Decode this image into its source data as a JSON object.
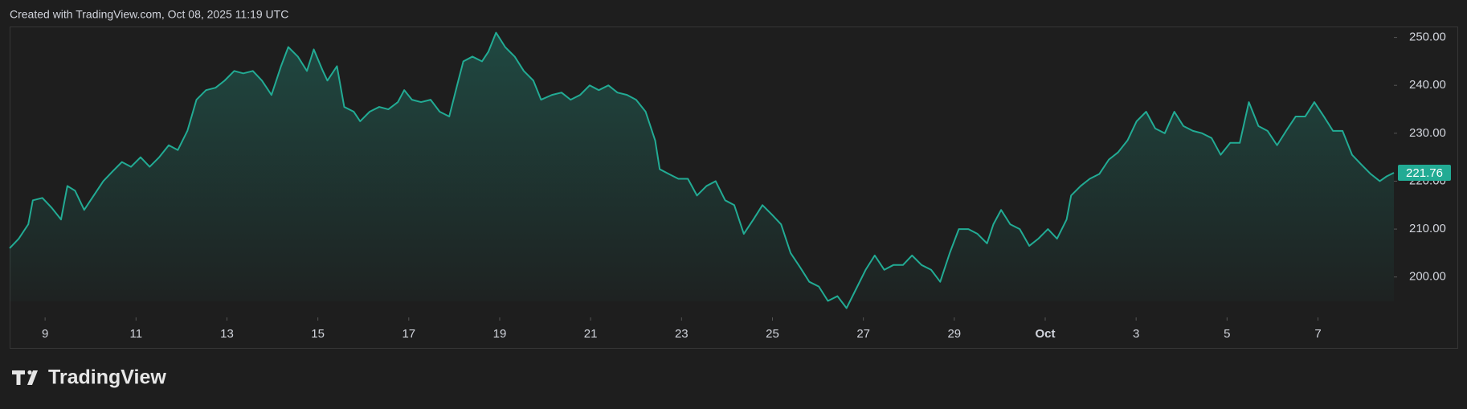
{
  "header": "Created with TradingView.com, Oct 08, 2025 11:19 UTC",
  "footer": {
    "logo": "TradingView"
  },
  "chart_data": {
    "type": "area",
    "color": "#22ab94",
    "grid": false,
    "x": [
      8.22,
      8.42,
      8.63,
      8.73,
      8.94,
      9.14,
      9.35,
      9.49,
      9.66,
      9.86,
      10.07,
      10.28,
      10.48,
      10.69,
      10.89,
      11.1,
      11.3,
      11.51,
      11.72,
      11.92,
      12.13,
      12.33,
      12.54,
      12.75,
      12.95,
      13.16,
      13.36,
      13.57,
      13.77,
      13.98,
      14.19,
      14.35,
      14.56,
      14.76,
      14.91,
      15.11,
      15.21,
      15.42,
      15.58,
      15.79,
      15.93,
      16.14,
      16.35,
      16.55,
      16.76,
      16.9,
      17.07,
      17.27,
      17.48,
      17.68,
      17.89,
      18.09,
      18.2,
      18.4,
      18.61,
      18.75,
      18.92,
      19.12,
      19.33,
      19.53,
      19.74,
      19.91,
      20.15,
      20.36,
      20.56,
      20.77,
      20.98,
      21.18,
      21.39,
      21.59,
      21.8,
      22.0,
      22.21,
      22.42,
      22.52,
      22.72,
      22.93,
      23.14,
      23.34,
      23.55,
      23.75,
      23.96,
      24.16,
      24.37,
      24.58,
      24.78,
      24.99,
      25.19,
      25.4,
      25.61,
      25.81,
      26.02,
      26.22,
      26.43,
      26.63,
      26.84,
      27.05,
      27.25,
      27.46,
      27.66,
      27.87,
      28.07,
      28.28,
      28.49,
      28.69,
      28.9,
      29.1,
      29.31,
      29.51,
      29.72,
      29.86,
      30.03,
      30.23,
      30.44,
      30.65,
      30.85,
      31.06,
      31.26,
      31.47,
      31.57,
      31.78,
      31.98,
      32.19,
      32.4,
      32.6,
      32.81,
      33.01,
      33.22,
      33.42,
      33.63,
      33.84,
      34.04,
      34.25,
      34.45,
      34.66,
      34.86,
      35.07,
      35.28,
      35.48,
      35.69,
      35.89,
      36.1,
      36.3,
      36.51,
      36.72,
      36.92,
      37.13,
      37.33,
      37.54,
      37.75,
      37.95,
      38.16,
      38.36,
      38.51,
      38.67
    ],
    "series": [
      {
        "values": [
          206,
          208,
          211,
          216,
          216.5,
          214.5,
          212,
          219,
          218,
          214,
          217,
          220,
          222,
          224,
          223,
          225,
          223,
          225,
          227.5,
          226.5,
          230.5,
          237,
          239,
          239.5,
          241,
          243,
          242.5,
          243,
          241,
          238,
          244,
          248,
          246,
          243,
          247.5,
          243,
          241,
          244,
          235.5,
          234.5,
          232.5,
          234.5,
          235.5,
          235,
          236.5,
          239,
          237,
          236.5,
          237,
          234.5,
          233.5,
          241,
          245,
          246,
          245,
          247,
          251,
          248,
          246,
          243,
          241,
          237,
          238,
          238.5,
          237,
          238,
          240,
          239,
          240,
          238.5,
          238,
          237,
          234.5,
          228.5,
          222.5,
          221.5,
          220.5,
          220.5,
          217,
          219,
          220,
          216,
          215,
          209,
          212,
          215,
          213,
          211,
          205,
          202,
          199,
          198,
          195,
          196,
          193.5,
          197.5,
          201.5,
          204.5,
          201.5,
          202.5,
          202.5,
          204.5,
          202.5,
          201.5,
          199,
          205,
          210,
          210,
          209,
          207,
          211,
          214,
          211,
          210,
          206.5,
          208,
          210,
          208,
          212,
          217,
          219,
          220.5,
          221.5,
          224.5,
          226,
          228.5,
          232.5,
          234.5,
          231,
          230,
          234.5,
          231.5,
          230.5,
          230,
          229,
          225.5,
          228,
          228,
          236.5,
          231.5,
          230.5,
          227.5,
          230.5,
          233.5,
          233.5,
          236.5,
          233.5,
          230.5,
          230.5,
          225.5,
          223.5,
          221.5,
          220,
          221,
          221.76
        ]
      }
    ],
    "xlim": [
      8.22,
      38.67
    ],
    "ylim": [
      194.92,
      252.28
    ],
    "xticks": [
      9,
      11,
      13,
      15,
      17,
      19,
      21,
      23,
      25,
      27,
      29,
      {
        "value": 31,
        "label": "Oct"
      },
      {
        "value": 33,
        "label": "3"
      },
      {
        "value": 35,
        "label": "5"
      },
      {
        "value": 37,
        "label": "7"
      }
    ],
    "yticks": [
      {
        "value": 200,
        "label": "200.00"
      },
      {
        "value": 210,
        "label": "210.00"
      },
      {
        "value": 220,
        "label": "220.00"
      },
      {
        "value": 230,
        "label": "230.00"
      },
      {
        "value": 240,
        "label": "240.00"
      },
      {
        "value": 250,
        "label": "250.00"
      }
    ]
  }
}
